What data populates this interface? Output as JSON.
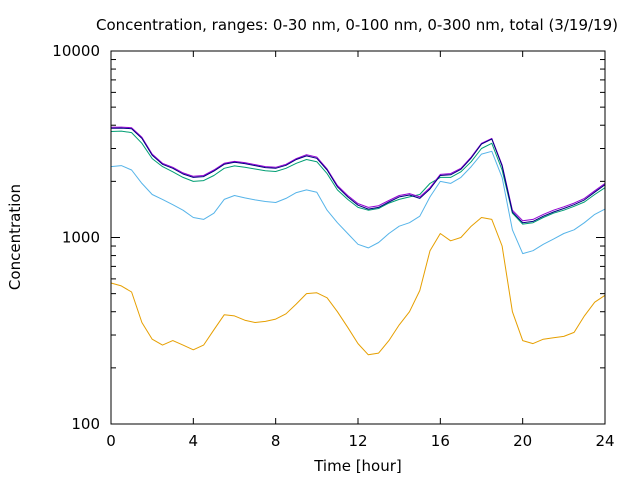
{
  "chart_data": {
    "type": "line",
    "title": "Concentration, ranges: 0-30 nm, 0-100 nm, 0-300 nm, total (3/19/19)",
    "xlabel": "Time [hour]",
    "ylabel": "Concentration",
    "xlim": [
      0,
      24
    ],
    "ylim": [
      100,
      10000
    ],
    "yscale": "log",
    "grid": false,
    "x_ticks": [
      0,
      4,
      8,
      12,
      16,
      20,
      24
    ],
    "x_tick_labels": [
      "0",
      "4",
      "8",
      "12",
      "16",
      "20",
      "24"
    ],
    "y_ticks": [
      100,
      1000,
      10000
    ],
    "y_tick_labels": [
      "100",
      "1000",
      "10000"
    ],
    "series": [
      {
        "color": "#e69f00",
        "points": [
          [
            0,
            570
          ],
          [
            0.5,
            550
          ],
          [
            1,
            510
          ],
          [
            1.5,
            350
          ],
          [
            2,
            285
          ],
          [
            2.5,
            265
          ],
          [
            3,
            280
          ],
          [
            3.5,
            265
          ],
          [
            4,
            250
          ],
          [
            4.5,
            265
          ],
          [
            5,
            320
          ],
          [
            5.5,
            385
          ],
          [
            6,
            380
          ],
          [
            6.5,
            360
          ],
          [
            7,
            350
          ],
          [
            7.5,
            355
          ],
          [
            8,
            365
          ],
          [
            8.5,
            390
          ],
          [
            9,
            440
          ],
          [
            9.5,
            500
          ],
          [
            10,
            505
          ],
          [
            10.5,
            475
          ],
          [
            11,
            400
          ],
          [
            11.5,
            330
          ],
          [
            12,
            270
          ],
          [
            12.5,
            235
          ],
          [
            13,
            240
          ],
          [
            13.5,
            280
          ],
          [
            14,
            340
          ],
          [
            14.5,
            400
          ],
          [
            15,
            520
          ],
          [
            15.5,
            850
          ],
          [
            16,
            1050
          ],
          [
            16.5,
            960
          ],
          [
            17,
            1000
          ],
          [
            17.5,
            1150
          ],
          [
            18,
            1280
          ],
          [
            18.5,
            1250
          ],
          [
            19,
            900
          ],
          [
            19.5,
            400
          ],
          [
            20,
            280
          ],
          [
            20.5,
            270
          ],
          [
            21,
            285
          ],
          [
            21.5,
            290
          ],
          [
            22,
            295
          ],
          [
            22.5,
            310
          ],
          [
            23,
            380
          ],
          [
            23.5,
            450
          ],
          [
            24,
            490
          ]
        ]
      },
      {
        "color": "#56b4e9",
        "points": [
          [
            0,
            2400
          ],
          [
            0.5,
            2430
          ],
          [
            1,
            2300
          ],
          [
            1.5,
            1950
          ],
          [
            2,
            1700
          ],
          [
            2.5,
            1600
          ],
          [
            3,
            1500
          ],
          [
            3.5,
            1400
          ],
          [
            4,
            1280
          ],
          [
            4.5,
            1250
          ],
          [
            5,
            1350
          ],
          [
            5.5,
            1600
          ],
          [
            6,
            1680
          ],
          [
            6.5,
            1630
          ],
          [
            7,
            1590
          ],
          [
            7.5,
            1560
          ],
          [
            8,
            1540
          ],
          [
            8.5,
            1620
          ],
          [
            9,
            1740
          ],
          [
            9.5,
            1800
          ],
          [
            10,
            1750
          ],
          [
            10.5,
            1400
          ],
          [
            11,
            1200
          ],
          [
            11.5,
            1050
          ],
          [
            12,
            920
          ],
          [
            12.5,
            880
          ],
          [
            13,
            940
          ],
          [
            13.5,
            1050
          ],
          [
            14,
            1150
          ],
          [
            14.5,
            1200
          ],
          [
            15,
            1300
          ],
          [
            15.5,
            1650
          ],
          [
            16,
            2000
          ],
          [
            16.5,
            1950
          ],
          [
            17,
            2100
          ],
          [
            17.5,
            2400
          ],
          [
            18,
            2800
          ],
          [
            18.5,
            2900
          ],
          [
            19,
            2100
          ],
          [
            19.5,
            1100
          ],
          [
            20,
            820
          ],
          [
            20.5,
            850
          ],
          [
            21,
            920
          ],
          [
            21.5,
            980
          ],
          [
            22,
            1050
          ],
          [
            22.5,
            1100
          ],
          [
            23,
            1200
          ],
          [
            23.5,
            1330
          ],
          [
            24,
            1420
          ]
        ]
      },
      {
        "color": "#009e73",
        "points": [
          [
            0,
            3700
          ],
          [
            0.5,
            3720
          ],
          [
            1,
            3650
          ],
          [
            1.5,
            3200
          ],
          [
            2,
            2650
          ],
          [
            2.5,
            2400
          ],
          [
            3,
            2250
          ],
          [
            3.5,
            2100
          ],
          [
            4,
            2000
          ],
          [
            4.5,
            2020
          ],
          [
            5,
            2150
          ],
          [
            5.5,
            2350
          ],
          [
            6,
            2420
          ],
          [
            6.5,
            2380
          ],
          [
            7,
            2330
          ],
          [
            7.5,
            2280
          ],
          [
            8,
            2260
          ],
          [
            8.5,
            2350
          ],
          [
            9,
            2500
          ],
          [
            9.5,
            2620
          ],
          [
            10,
            2550
          ],
          [
            10.5,
            2200
          ],
          [
            11,
            1800
          ],
          [
            11.5,
            1600
          ],
          [
            12,
            1450
          ],
          [
            12.5,
            1400
          ],
          [
            13,
            1430
          ],
          [
            13.5,
            1530
          ],
          [
            14,
            1600
          ],
          [
            14.5,
            1650
          ],
          [
            15,
            1700
          ],
          [
            15.5,
            1950
          ],
          [
            16,
            2100
          ],
          [
            16.5,
            2100
          ],
          [
            17,
            2250
          ],
          [
            17.5,
            2550
          ],
          [
            18,
            3000
          ],
          [
            18.5,
            3200
          ],
          [
            19,
            2300
          ],
          [
            19.5,
            1350
          ],
          [
            20,
            1180
          ],
          [
            20.5,
            1200
          ],
          [
            21,
            1280
          ],
          [
            21.5,
            1350
          ],
          [
            22,
            1400
          ],
          [
            22.5,
            1470
          ],
          [
            23,
            1550
          ],
          [
            23.5,
            1700
          ],
          [
            24,
            1850
          ]
        ]
      },
      {
        "color": "#9400d3",
        "points": [
          [
            0,
            3900
          ],
          [
            0.5,
            3910
          ],
          [
            1,
            3880
          ],
          [
            1.5,
            3450
          ],
          [
            2,
            2800
          ],
          [
            2.5,
            2500
          ],
          [
            3,
            2380
          ],
          [
            3.5,
            2220
          ],
          [
            4,
            2130
          ],
          [
            4.5,
            2150
          ],
          [
            5,
            2300
          ],
          [
            5.5,
            2500
          ],
          [
            6,
            2560
          ],
          [
            6.5,
            2520
          ],
          [
            7,
            2460
          ],
          [
            7.5,
            2400
          ],
          [
            8,
            2380
          ],
          [
            8.5,
            2470
          ],
          [
            9,
            2650
          ],
          [
            9.5,
            2780
          ],
          [
            10,
            2700
          ],
          [
            10.5,
            2330
          ],
          [
            11,
            1900
          ],
          [
            11.5,
            1680
          ],
          [
            12,
            1520
          ],
          [
            12.5,
            1450
          ],
          [
            13,
            1480
          ],
          [
            13.5,
            1580
          ],
          [
            14,
            1680
          ],
          [
            14.5,
            1720
          ],
          [
            15,
            1650
          ],
          [
            15.5,
            1850
          ],
          [
            16,
            2180
          ],
          [
            16.5,
            2200
          ],
          [
            17,
            2350
          ],
          [
            17.5,
            2700
          ],
          [
            18,
            3200
          ],
          [
            18.5,
            3400
          ],
          [
            19,
            2450
          ],
          [
            19.5,
            1400
          ],
          [
            20,
            1230
          ],
          [
            20.5,
            1250
          ],
          [
            21,
            1330
          ],
          [
            21.5,
            1400
          ],
          [
            22,
            1460
          ],
          [
            22.5,
            1530
          ],
          [
            23,
            1620
          ],
          [
            23.5,
            1780
          ],
          [
            24,
            1950
          ]
        ]
      },
      {
        "color": "#000080",
        "points": [
          [
            0,
            3850
          ],
          [
            0.5,
            3860
          ],
          [
            1,
            3830
          ],
          [
            1.5,
            3400
          ],
          [
            2,
            2760
          ],
          [
            2.5,
            2470
          ],
          [
            3,
            2350
          ],
          [
            3.5,
            2190
          ],
          [
            4,
            2100
          ],
          [
            4.5,
            2120
          ],
          [
            5,
            2270
          ],
          [
            5.5,
            2470
          ],
          [
            6,
            2530
          ],
          [
            6.5,
            2490
          ],
          [
            7,
            2430
          ],
          [
            7.5,
            2370
          ],
          [
            8,
            2350
          ],
          [
            8.5,
            2440
          ],
          [
            9,
            2620
          ],
          [
            9.5,
            2740
          ],
          [
            10,
            2660
          ],
          [
            10.5,
            2300
          ],
          [
            11,
            1870
          ],
          [
            11.5,
            1650
          ],
          [
            12,
            1490
          ],
          [
            12.5,
            1420
          ],
          [
            13,
            1450
          ],
          [
            13.5,
            1550
          ],
          [
            14,
            1650
          ],
          [
            14.5,
            1690
          ],
          [
            15,
            1620
          ],
          [
            15.5,
            1820
          ],
          [
            16,
            2150
          ],
          [
            16.5,
            2170
          ],
          [
            17,
            2320
          ],
          [
            17.5,
            2670
          ],
          [
            18,
            3170
          ],
          [
            18.5,
            3370
          ],
          [
            19,
            2420
          ],
          [
            19.5,
            1370
          ],
          [
            20,
            1200
          ],
          [
            20.5,
            1220
          ],
          [
            21,
            1300
          ],
          [
            21.5,
            1370
          ],
          [
            22,
            1430
          ],
          [
            22.5,
            1500
          ],
          [
            23,
            1590
          ],
          [
            23.5,
            1750
          ],
          [
            24,
            1920
          ]
        ]
      }
    ]
  }
}
